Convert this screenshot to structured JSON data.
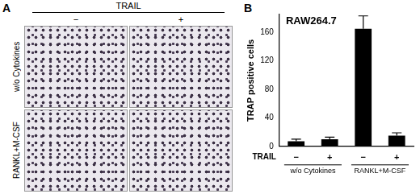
{
  "figure": {
    "panel_a": {
      "letter": "A",
      "header": "TRAIL",
      "columns": [
        "−",
        "+"
      ],
      "rows": [
        "w/o Cytokines",
        "RANKL+M-CSF"
      ]
    },
    "panel_b_letter": "B"
  },
  "chart_data": {
    "type": "bar",
    "title": "RAW264.7",
    "y_label": "TRAP positive cells",
    "category_label": "TRAIL",
    "categories": [
      "−",
      "+",
      "−",
      "+"
    ],
    "groups": [
      "w/o Cytokines",
      "w/o Cytokines",
      "RANKL+M-CSF",
      "RANKL+M-CSF"
    ],
    "values": [
      7,
      10,
      165,
      15
    ],
    "errors": [
      3,
      3,
      18,
      4
    ],
    "color": "#000000",
    "ylim": [
      0,
      185
    ],
    "yticks": [
      0,
      40,
      80,
      120,
      160
    ],
    "grid": false
  }
}
